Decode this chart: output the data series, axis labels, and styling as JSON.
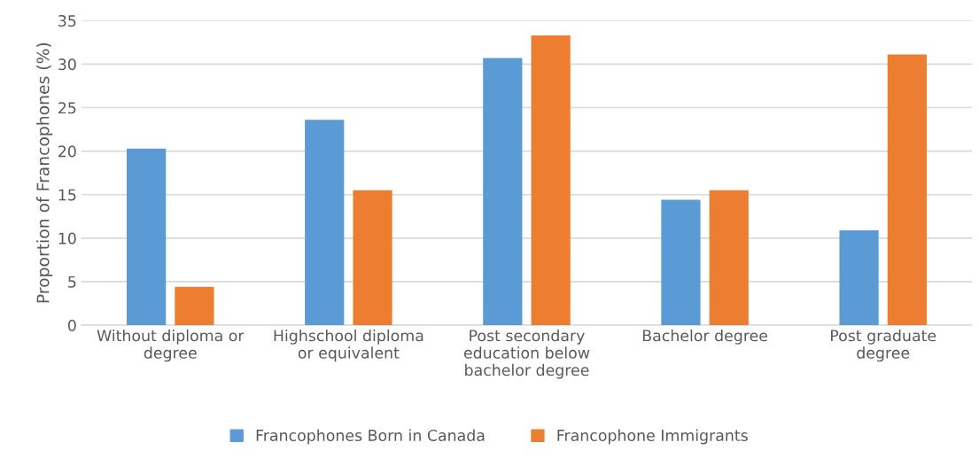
{
  "chart_data": {
    "type": "bar",
    "ylabel": "Proportion of Francophones (%)",
    "categories": [
      "Without diploma or\ndegree",
      "Highschool diploma\nor equivalent",
      "Post secondary\neducation below\nbachelor degree",
      "Bachelor degree",
      "Post graduate\ndegree"
    ],
    "series": [
      {
        "name": "Francophones Born in Canada",
        "color": "#5b9bd5",
        "values": [
          20.3,
          23.6,
          30.7,
          14.4,
          10.9
        ]
      },
      {
        "name": "Francophone Immigrants",
        "color": "#ed7d31",
        "values": [
          4.4,
          15.5,
          33.3,
          15.5,
          31.1
        ]
      }
    ],
    "ylim": [
      0,
      35
    ],
    "yticks": [
      0,
      5,
      10,
      15,
      20,
      25,
      30,
      35
    ],
    "grid": "y",
    "legend": "bottom"
  }
}
